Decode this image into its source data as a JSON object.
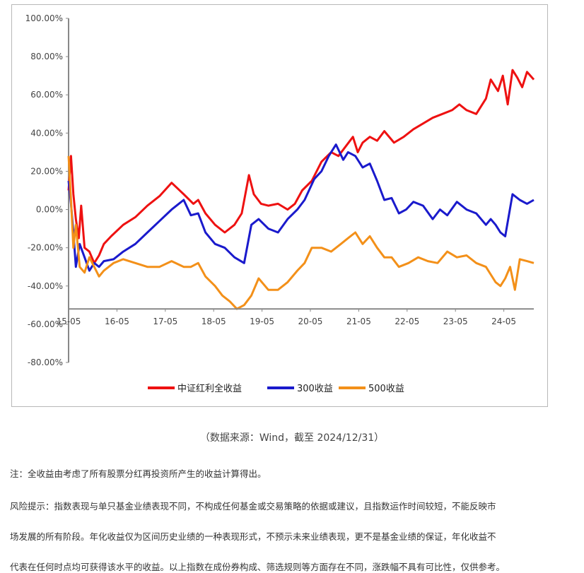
{
  "chart_data": {
    "type": "line",
    "title": "",
    "xlabel": "",
    "ylabel": "",
    "ylim": [
      -80,
      100
    ],
    "y_ticks": [
      "100.00%",
      "80.00%",
      "60.00%",
      "40.00%",
      "20.00%",
      "0.00%",
      "-20.00%",
      "-40.00%",
      "-60.00%",
      "-80.00%"
    ],
    "y_tick_values": [
      100,
      80,
      60,
      40,
      20,
      0,
      -20,
      -40,
      -60,
      -80
    ],
    "x_ticks": [
      "15-05",
      "16-05",
      "17-05",
      "18-05",
      "19-05",
      "20-05",
      "21-05",
      "22-05",
      "23-05",
      "24-05"
    ],
    "x_tick_values": [
      2015.37,
      2016.37,
      2017.37,
      2018.37,
      2019.37,
      2020.37,
      2021.37,
      2022.37,
      2023.37,
      2024.37
    ],
    "xlim": [
      2015.37,
      2024.99
    ],
    "legend_position": "bottom",
    "series": [
      {
        "name": "中证红利全收益",
        "color": "#ee1111",
        "x": [
          2015.37,
          2015.42,
          2015.47,
          2015.52,
          2015.58,
          2015.63,
          2015.7,
          2015.8,
          2015.9,
          2016.0,
          2016.1,
          2016.25,
          2016.5,
          2016.75,
          2017.0,
          2017.25,
          2017.5,
          2017.75,
          2017.95,
          2018.05,
          2018.2,
          2018.4,
          2018.6,
          2018.8,
          2018.95,
          2019.1,
          2019.2,
          2019.35,
          2019.5,
          2019.7,
          2019.9,
          2020.05,
          2020.2,
          2020.4,
          2020.6,
          2020.8,
          2020.95,
          2021.1,
          2021.25,
          2021.35,
          2021.45,
          2021.6,
          2021.75,
          2021.9,
          2022.1,
          2022.3,
          2022.5,
          2022.7,
          2022.9,
          2023.1,
          2023.3,
          2023.45,
          2023.6,
          2023.8,
          2024.0,
          2024.1,
          2024.25,
          2024.35,
          2024.45,
          2024.55,
          2024.65,
          2024.75,
          2024.85,
          2024.99
        ],
        "y": [
          10,
          28,
          8,
          -5,
          -15,
          2,
          -20,
          -22,
          -28,
          -24,
          -18,
          -14,
          -8,
          -4,
          2,
          7,
          14,
          8,
          3,
          5,
          -2,
          -8,
          -12,
          -8,
          -2,
          18,
          8,
          3,
          2,
          3,
          0,
          3,
          10,
          15,
          25,
          30,
          28,
          33,
          38,
          30,
          35,
          38,
          36,
          41,
          35,
          38,
          42,
          45,
          48,
          50,
          52,
          55,
          52,
          50,
          58,
          68,
          62,
          70,
          55,
          73,
          69,
          64,
          72,
          68
        ]
      },
      {
        "name": "300收益",
        "color": "#1a1acc",
        "x": [
          2015.37,
          2015.42,
          2015.47,
          2015.52,
          2015.6,
          2015.7,
          2015.8,
          2015.9,
          2016.0,
          2016.1,
          2016.3,
          2016.5,
          2016.75,
          2017.0,
          2017.25,
          2017.5,
          2017.75,
          2017.9,
          2018.05,
          2018.2,
          2018.4,
          2018.6,
          2018.8,
          2019.0,
          2019.15,
          2019.3,
          2019.5,
          2019.7,
          2019.9,
          2020.1,
          2020.25,
          2020.45,
          2020.6,
          2020.75,
          2020.9,
          2021.05,
          2021.15,
          2021.3,
          2021.45,
          2021.6,
          2021.75,
          2021.9,
          2022.05,
          2022.2,
          2022.35,
          2022.5,
          2022.7,
          2022.9,
          2023.05,
          2023.2,
          2023.4,
          2023.6,
          2023.8,
          2024.0,
          2024.1,
          2024.2,
          2024.3,
          2024.4,
          2024.55,
          2024.7,
          2024.85,
          2024.99
        ],
        "y": [
          15,
          3,
          -12,
          -30,
          -18,
          -25,
          -32,
          -28,
          -30,
          -27,
          -26,
          -22,
          -18,
          -12,
          -6,
          0,
          5,
          -3,
          -2,
          -12,
          -18,
          -20,
          -25,
          -28,
          -8,
          -5,
          -10,
          -12,
          -5,
          0,
          5,
          16,
          20,
          28,
          34,
          26,
          30,
          28,
          22,
          24,
          15,
          5,
          6,
          -2,
          0,
          4,
          2,
          -5,
          0,
          -3,
          4,
          0,
          -2,
          -8,
          -5,
          -8,
          -12,
          -14,
          8,
          5,
          3,
          5
        ]
      },
      {
        "name": "500收益",
        "color": "#f39019",
        "x": [
          2015.37,
          2015.42,
          2015.47,
          2015.52,
          2015.6,
          2015.7,
          2015.8,
          2015.9,
          2016.0,
          2016.1,
          2016.3,
          2016.5,
          2016.75,
          2017.0,
          2017.25,
          2017.5,
          2017.75,
          2017.9,
          2018.05,
          2018.2,
          2018.4,
          2018.55,
          2018.7,
          2018.85,
          2019.0,
          2019.15,
          2019.3,
          2019.5,
          2019.7,
          2019.9,
          2020.1,
          2020.25,
          2020.4,
          2020.6,
          2020.8,
          2021.0,
          2021.15,
          2021.3,
          2021.45,
          2021.6,
          2021.75,
          2021.9,
          2022.05,
          2022.2,
          2022.4,
          2022.6,
          2022.8,
          2023.0,
          2023.2,
          2023.4,
          2023.6,
          2023.8,
          2024.0,
          2024.1,
          2024.2,
          2024.3,
          2024.4,
          2024.5,
          2024.6,
          2024.7,
          2024.85,
          2024.99
        ],
        "y": [
          28,
          5,
          -20,
          -8,
          -30,
          -33,
          -25,
          -30,
          -35,
          -32,
          -28,
          -26,
          -28,
          -30,
          -30,
          -27,
          -30,
          -30,
          -28,
          -35,
          -40,
          -45,
          -48,
          -52,
          -50,
          -45,
          -36,
          -42,
          -42,
          -38,
          -32,
          -28,
          -20,
          -20,
          -22,
          -18,
          -15,
          -12,
          -18,
          -14,
          -20,
          -25,
          -25,
          -30,
          -28,
          -25,
          -27,
          -28,
          -22,
          -25,
          -24,
          -28,
          -30,
          -34,
          -38,
          -40,
          -36,
          -30,
          -42,
          -26,
          -27,
          -28
        ]
      }
    ]
  },
  "source_text": "（数据来源：Wind，截至 2024/12/31）",
  "notes": [
    "注：全收益由考虑了所有股票分红再投资所产生的收益计算得出。",
    "风险提示：指数表现与单只基金业绩表现不同，不构成任何基金或交易策略的依据或建议，且指数运作时间较短，不能反映市",
    "场发展的所有阶段。年化收益仅为区间历史业绩的一种表现形式，不预示未来业绩表现，更不是基金业绩的保证，年化收益不",
    "代表在任何时点均可获得该水平的收益。以上指数在成份券构成、筛选规则等方面存在不同，涨跌幅不具有可比性，仅供参考。"
  ]
}
